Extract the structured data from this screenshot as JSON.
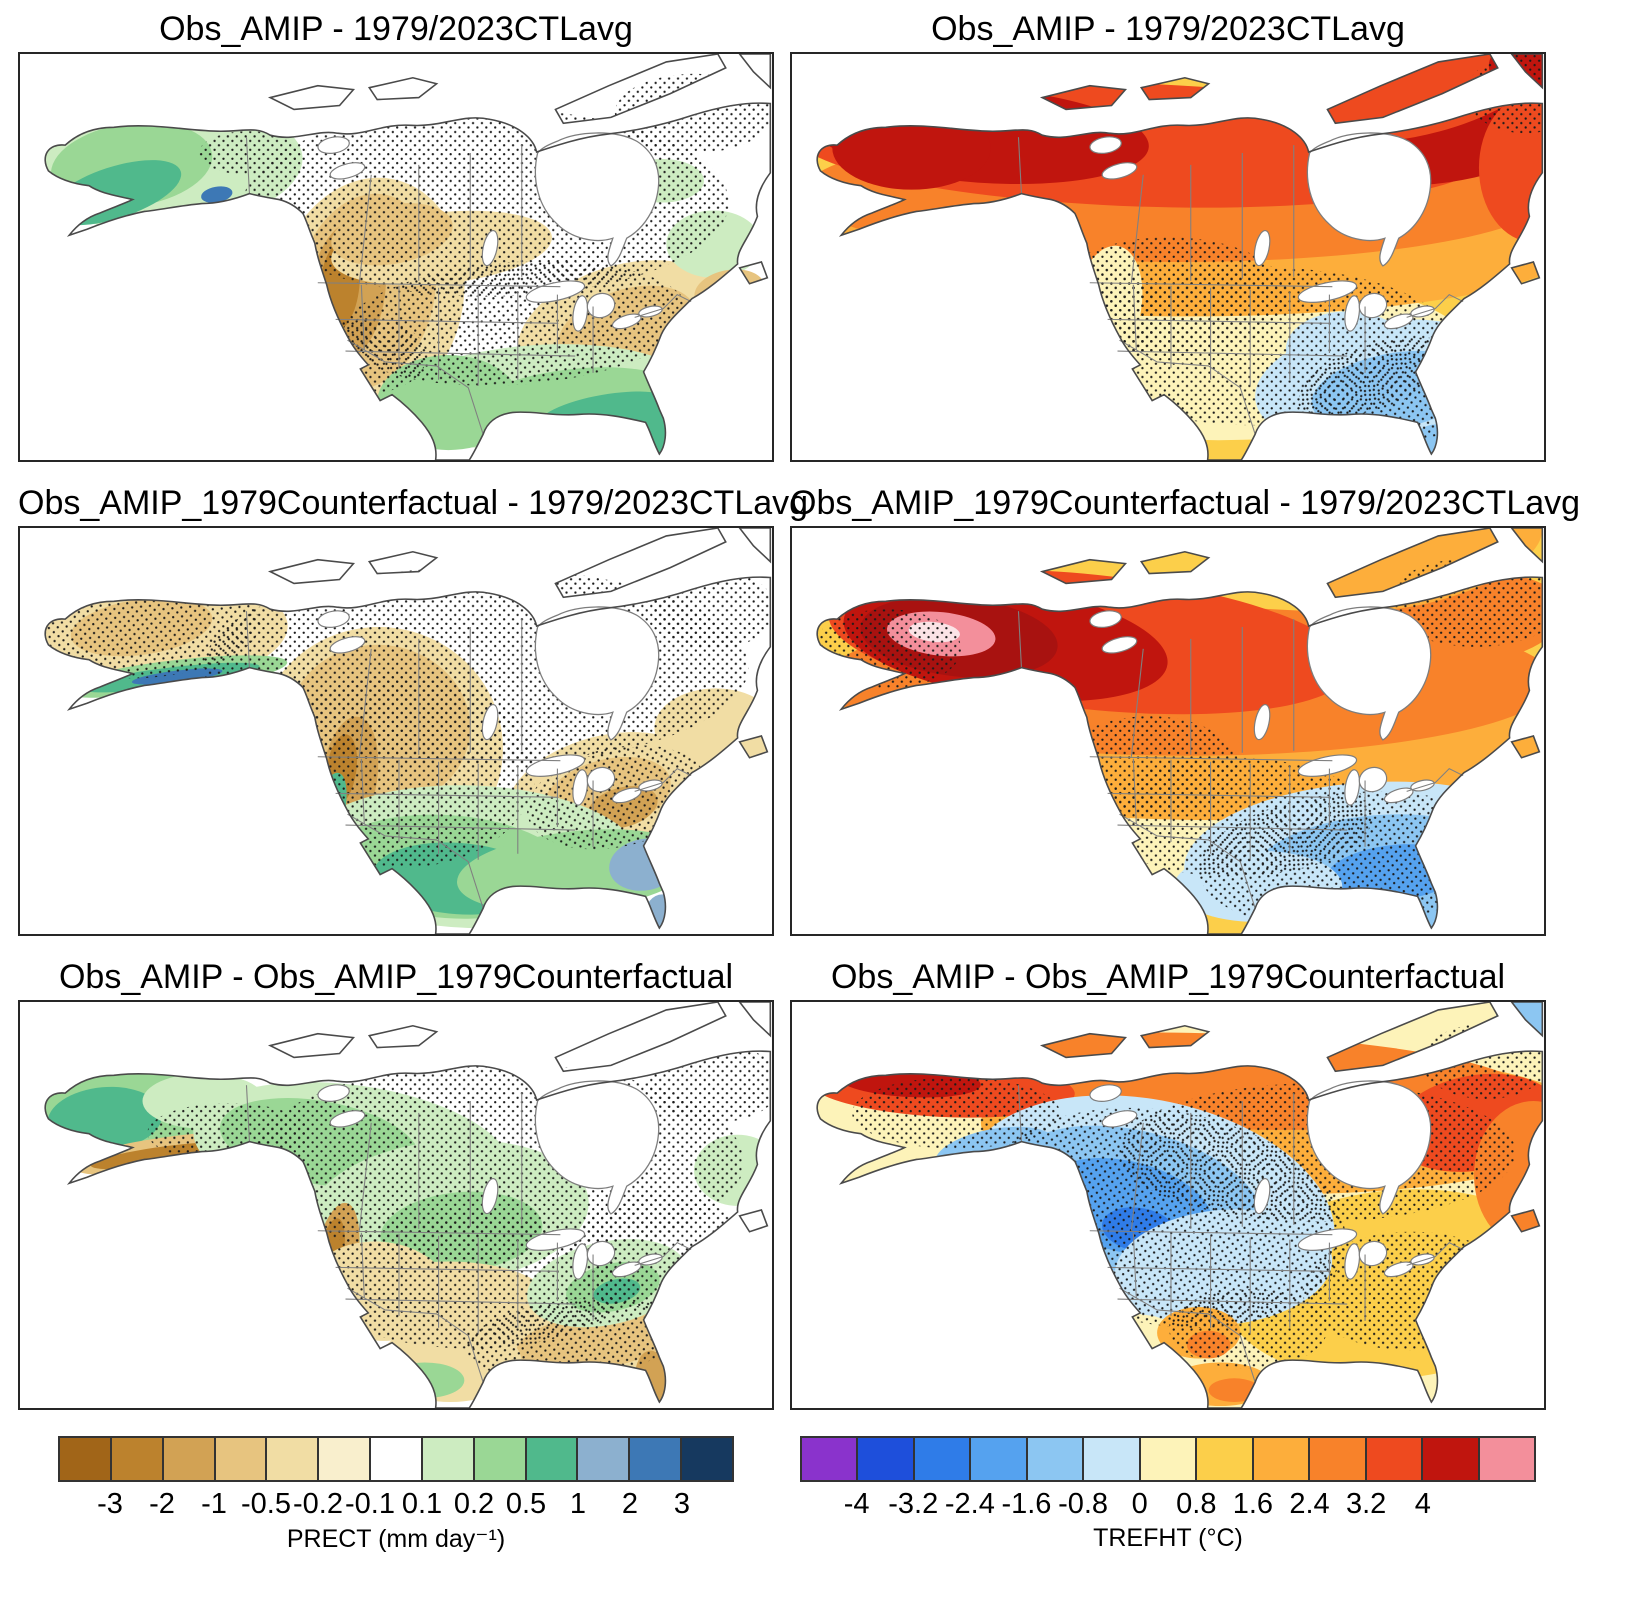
{
  "figure": {
    "panels": [
      {
        "title": "Obs_AMIP - 1979/2023CTLavg",
        "variable": "PRECT",
        "row": 1,
        "col": "left"
      },
      {
        "title": "Obs_AMIP - 1979/2023CTLavg",
        "variable": "TREFHT",
        "row": 1,
        "col": "right"
      },
      {
        "title": "Obs_AMIP_1979Counterfactual - 1979/2023CTLavg",
        "variable": "PRECT",
        "row": 2,
        "col": "left"
      },
      {
        "title": "Obs_AMIP_1979Counterfactual - 1979/2023CTLavg",
        "variable": "TREFHT",
        "row": 2,
        "col": "right"
      },
      {
        "title": "Obs_AMIP - Obs_AMIP_1979Counterfactual",
        "variable": "PRECT",
        "row": 3,
        "col": "left"
      },
      {
        "title": "Obs_AMIP - Obs_AMIP_1979Counterfactual",
        "variable": "TREFHT",
        "row": 3,
        "col": "right"
      }
    ],
    "colorbars": [
      {
        "id": "prect",
        "label": "PRECT (mm day⁻¹)",
        "ticks": [
          "-3",
          "-2",
          "-1",
          "-0.5",
          "-0.2",
          "-0.1",
          "0.1",
          "0.2",
          "0.5",
          "1",
          "2",
          "3"
        ],
        "colors": [
          "#a16518",
          "#bc822d",
          "#d2a254",
          "#e7c47f",
          "#f1dda4",
          "#f9efcd",
          "#ffffff",
          "#cdecc1",
          "#9ad795",
          "#50b98c",
          "#8cb0cf",
          "#3d78b5",
          "#16395f"
        ]
      },
      {
        "id": "trefht",
        "label": "TREFHT (°C)",
        "ticks": [
          "-4",
          "-3.2",
          "-2.4",
          "-1.6",
          "-0.8",
          "0",
          "0.8",
          "1.6",
          "2.4",
          "3.2",
          "4"
        ],
        "colors": [
          "#8a33cc",
          "#1e4fdb",
          "#2f7ce8",
          "#55a2ef",
          "#8cc6f2",
          "#c8e6f8",
          "#fdf3b9",
          "#fccf4a",
          "#fdae3b",
          "#f8822a",
          "#ee4a1f",
          "#c0150e",
          "#f38f9b"
        ]
      }
    ]
  },
  "chart_data": {
    "type": "heatmap",
    "layout": "6 filled-contour anomaly maps of North America in a 3x2 grid; left column precipitation (PRECT), right column near-surface temperature (TREFHT); stippling marks significance; shared discrete colorbars at bottom",
    "panels": [
      {
        "position": "top-left",
        "title": "Obs_AMIP - 1979/2023CTLavg",
        "variable": "PRECT",
        "summary": "Wet (green) Alaska and southeastern US/Mexico; dry (brown/tan) US West and Northeast; stippling over central Canada and central US"
      },
      {
        "position": "top-right",
        "title": "Obs_AMIP - 1979/2023CTLavg",
        "variable": "TREFHT",
        "summary": "Strong warming (dark red) over Alaska and northern/northeastern Canada grading to orange/yellow southward; slight cooling (light blue) over southeastern US"
      },
      {
        "position": "mid-left",
        "title": "Obs_AMIP_1979Counterfactual - 1979/2023CTLavg",
        "variable": "PRECT",
        "summary": "Dry (tan) Alaska and western interior plus Midwest/Northeast; wet (green) band along south Alaska coast and over southwestern US, Mexico and Gulf coast; heavy stippling over Canada"
      },
      {
        "position": "mid-right",
        "title": "Obs_AMIP_1979Counterfactual - 1979/2023CTLavg",
        "variable": "TREFHT",
        "summary": "Very strong warming core (dark red with pale center) over Alaska/Yukon, orange across Canada; cooling (blue) over southeastern US and Texas"
      },
      {
        "position": "bottom-left",
        "title": "Obs_AMIP - Obs_AMIP_1979Counterfactual",
        "variable": "PRECT",
        "summary": "Wet (green) Alaska, western Canada and Great Lakes/Ohio valley; dry (tan/brown) US west coast, plains and Southeast with brown Florida; widespread stippling"
      },
      {
        "position": "bottom-right",
        "title": "Obs_AMIP - Obs_AMIP_1979Counterfactual",
        "variable": "TREFHT",
        "summary": "Warming (red/orange) along north Alaska coast and northern/eastern Canada; cooling (blue) over western Canada into northwestern US plains; yellow/gold elsewhere with orange spots in the Southwest"
      }
    ],
    "colorbars": [
      {
        "variable": "PRECT",
        "units": "mm day⁻¹",
        "tick_values": [
          -3,
          -2,
          -1,
          -0.5,
          -0.2,
          -0.1,
          0.1,
          0.2,
          0.5,
          1,
          2,
          3
        ]
      },
      {
        "variable": "TREFHT",
        "units": "°C",
        "tick_values": [
          -4,
          -3.2,
          -2.4,
          -1.6,
          -0.8,
          0,
          0.8,
          1.6,
          2.4,
          3.2,
          4
        ]
      }
    ]
  }
}
